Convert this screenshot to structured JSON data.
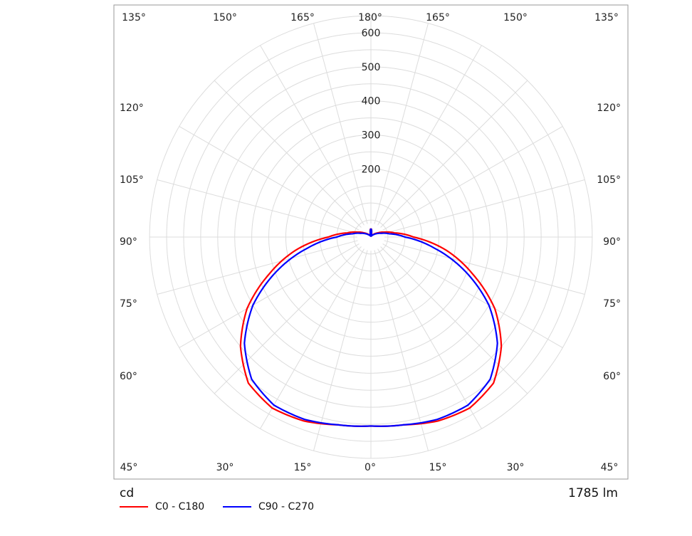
{
  "chart_data": {
    "type": "polar",
    "unit_label": "cd",
    "flux_label": "1785 lm",
    "radial_ticks": [
      200,
      300,
      400,
      500,
      600
    ],
    "r_max": 650,
    "angle_labels_bottom": [
      "45°",
      "30°",
      "15°",
      "0°",
      "15°",
      "30°",
      "45°"
    ],
    "angle_labels_left": [
      "60°",
      "75°",
      "90°",
      "105°",
      "120°"
    ],
    "angle_labels_right": [
      "60°",
      "75°",
      "90°",
      "105°",
      "120°"
    ],
    "angle_labels_top": [
      "135°",
      "150°",
      "165°",
      "180°",
      "165°",
      "150°",
      "135°"
    ],
    "series": [
      {
        "name": "C0 - C180",
        "color": "#ff0000",
        "gamma": [
          0,
          10,
          20,
          30,
          40,
          50,
          60,
          70,
          80,
          90,
          100,
          110,
          120,
          130,
          140,
          150,
          160,
          170,
          175,
          180
        ],
        "values": [
          555,
          560,
          575,
          580,
          560,
          500,
          420,
          318,
          225,
          125,
          70,
          42,
          25,
          15,
          9,
          5,
          3,
          12,
          22,
          25
        ]
      },
      {
        "name": "C90 - C270",
        "color": "#0000ff",
        "gamma": [
          0,
          10,
          20,
          30,
          40,
          50,
          60,
          70,
          80,
          90,
          100,
          110,
          120,
          130,
          140,
          150,
          160,
          170,
          175,
          180
        ],
        "values": [
          555,
          560,
          570,
          570,
          545,
          485,
          400,
          295,
          190,
          100,
          55,
          32,
          20,
          12,
          7,
          5,
          3,
          10,
          20,
          25
        ]
      }
    ]
  }
}
